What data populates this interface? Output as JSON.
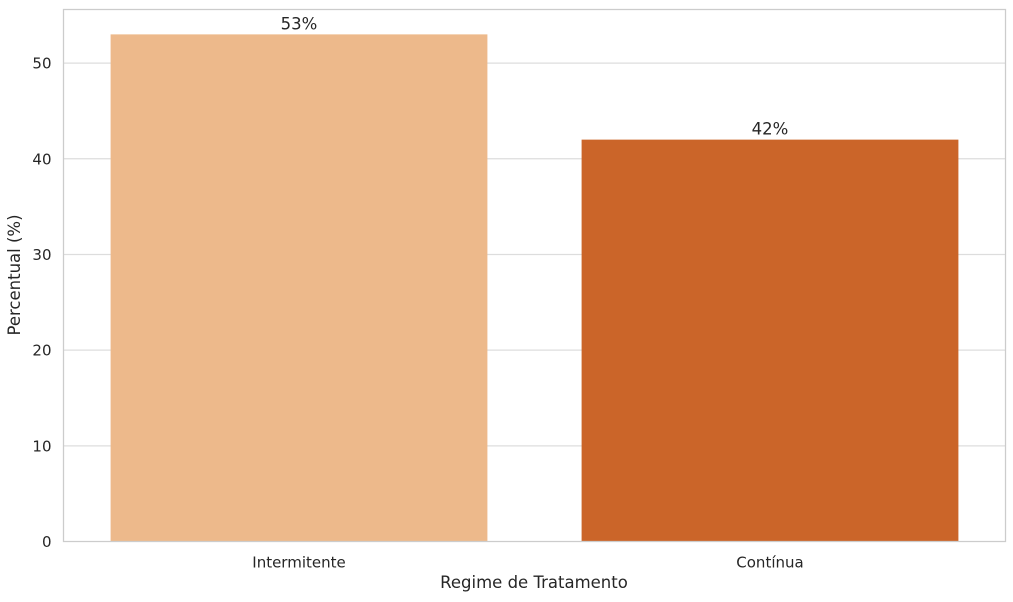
{
  "chart_data": {
    "type": "bar",
    "title": "",
    "xlabel": "Regime de Tratamento",
    "ylabel": "Percentual (%)",
    "categories": [
      "Intermitente",
      "Contínua"
    ],
    "values": [
      53,
      42
    ],
    "data_labels": [
      "53%",
      "42%"
    ],
    "colors": [
      "#edb98b",
      "#cb6529"
    ],
    "ylim": [
      0,
      55.6
    ],
    "yticks": [
      0,
      10,
      20,
      30,
      40,
      50
    ],
    "grid": true,
    "grid_axis": "y",
    "legend": false
  }
}
